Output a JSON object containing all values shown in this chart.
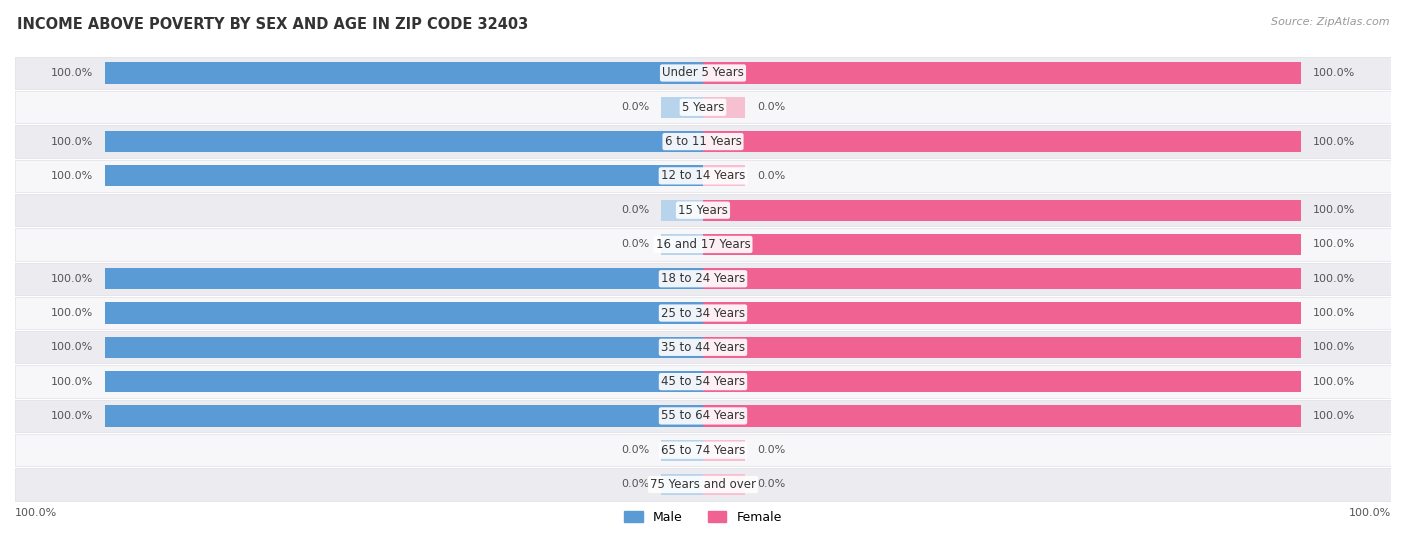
{
  "title": "INCOME ABOVE POVERTY BY SEX AND AGE IN ZIP CODE 32403",
  "source": "Source: ZipAtlas.com",
  "categories": [
    "Under 5 Years",
    "5 Years",
    "6 to 11 Years",
    "12 to 14 Years",
    "15 Years",
    "16 and 17 Years",
    "18 to 24 Years",
    "25 to 34 Years",
    "35 to 44 Years",
    "45 to 54 Years",
    "55 to 64 Years",
    "65 to 74 Years",
    "75 Years and over"
  ],
  "male_values": [
    100.0,
    0.0,
    100.0,
    100.0,
    0.0,
    0.0,
    100.0,
    100.0,
    100.0,
    100.0,
    100.0,
    0.0,
    0.0
  ],
  "female_values": [
    100.0,
    0.0,
    100.0,
    0.0,
    100.0,
    100.0,
    100.0,
    100.0,
    100.0,
    100.0,
    100.0,
    0.0,
    0.0
  ],
  "male_color": "#5b9bd5",
  "male_color_light": "#b8d4ed",
  "female_color": "#f06292",
  "female_color_light": "#f7c0d0",
  "title_fontsize": 10.5,
  "label_fontsize": 8.5,
  "value_fontsize": 8.0
}
